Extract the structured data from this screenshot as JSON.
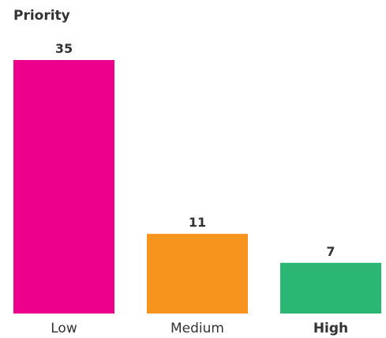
{
  "chart_data": {
    "type": "bar",
    "title": "Priority",
    "categories": [
      "Low",
      "Medium",
      "High"
    ],
    "values": [
      35,
      11,
      7
    ],
    "colors": [
      "#ec008c",
      "#f7941d",
      "#2bb673"
    ],
    "ylim": [
      0,
      35
    ],
    "xlabel": "",
    "ylabel": "",
    "grid": false,
    "emphasized_category": "High"
  }
}
